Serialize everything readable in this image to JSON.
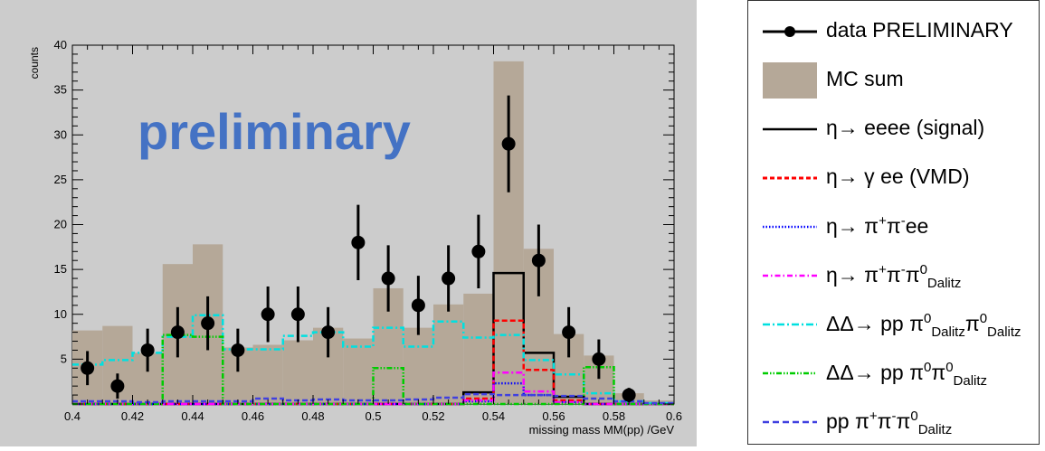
{
  "chart_data": {
    "type": "bar",
    "xlabel": "missing mass MM(pp) /GeV",
    "ylabel": "counts",
    "xlim": [
      0.4,
      0.6
    ],
    "ylim": [
      0,
      40
    ],
    "xticks": [
      "0.4",
      "0.42",
      "0.44",
      "0.46",
      "0.48",
      "0.5",
      "0.52",
      "0.54",
      "0.56",
      "0.58",
      "0.6"
    ],
    "yticks": [
      "5",
      "10",
      "15",
      "20",
      "25",
      "30",
      "35",
      "40"
    ],
    "watermark": "preliminary",
    "bins": {
      "edges": [
        0.4,
        0.41,
        0.42,
        0.43,
        0.44,
        0.45,
        0.46,
        0.47,
        0.48,
        0.49,
        0.5,
        0.51,
        0.52,
        0.53,
        0.54,
        0.55,
        0.56,
        0.57,
        0.58,
        0.59,
        0.6
      ]
    },
    "series": [
      {
        "name": "MC sum",
        "style": "filled",
        "color": "#b5a898",
        "values": [
          8.2,
          8.7,
          5.7,
          15.6,
          17.8,
          6.3,
          6.6,
          7.1,
          8.5,
          7.3,
          12.9,
          8.5,
          11.1,
          12.3,
          38.2,
          17.3,
          7.8,
          5.4,
          1.2,
          0.4
        ]
      },
      {
        "name": "η→ eeee (signal)",
        "style": "solid",
        "color": "#000000",
        "values": [
          0,
          0,
          0,
          0,
          0,
          0,
          0,
          0,
          0,
          0,
          0,
          0,
          0,
          1.3,
          14.6,
          5.7,
          0.8,
          0,
          0,
          0
        ]
      },
      {
        "name": "η→ γ ee (VMD)",
        "style": "dashed",
        "color": "#ff0000",
        "values": [
          0,
          0,
          0,
          0,
          0,
          0,
          0,
          0,
          0,
          0,
          0,
          0,
          0,
          0.6,
          9.3,
          3.8,
          0.4,
          0,
          0,
          0
        ]
      },
      {
        "name": "η→ π⁺π⁻ee",
        "style": "dotted",
        "color": "#0000ff",
        "values": [
          0,
          0,
          0,
          0,
          0,
          0,
          0,
          0,
          0,
          0,
          0,
          0,
          0,
          0.3,
          2.3,
          1.0,
          0.2,
          0,
          0,
          0
        ]
      },
      {
        "name": "η→ π⁺π⁻π⁰Dalitz",
        "style": "dashdot",
        "color": "#ff00ff",
        "values": [
          0,
          0,
          0,
          0,
          0,
          0,
          0,
          0,
          0,
          0,
          0,
          0,
          0,
          0.4,
          3.5,
          1.4,
          0.2,
          0,
          0,
          0
        ]
      },
      {
        "name": "ΔΔ→ pp π⁰Dalitzπ⁰Dalitz",
        "style": "dashdot",
        "color": "#00e0e0",
        "values": [
          4.4,
          4.9,
          5.7,
          7.5,
          9.9,
          6.1,
          6.1,
          7.6,
          8.0,
          6.4,
          8.5,
          6.4,
          9.2,
          7.4,
          7.7,
          4.9,
          3.3,
          1.2,
          0.3,
          0.1
        ]
      },
      {
        "name": "ΔΔ→ pp π⁰π⁰Dalitz",
        "style": "dashdotdot",
        "color": "#00cc00",
        "values": [
          0,
          0,
          0,
          7.7,
          7.5,
          0,
          0,
          0,
          0,
          0,
          4.0,
          0,
          0,
          0,
          0,
          0,
          0,
          4.1,
          0,
          0
        ]
      },
      {
        "name": "pp π⁺π⁻π⁰Dalitz",
        "style": "dashed",
        "color": "#4040e0",
        "values": [
          0.3,
          0.3,
          0.2,
          0.3,
          0.3,
          0.3,
          0.6,
          0.4,
          0.5,
          0.4,
          0.4,
          0.5,
          0.7,
          1.1,
          1.0,
          1.0,
          0.9,
          0.6,
          0.3,
          0.1
        ]
      },
      {
        "name": "data PRELIMINARY",
        "style": "points",
        "color": "#000000",
        "x": [
          0.405,
          0.415,
          0.425,
          0.435,
          0.445,
          0.455,
          0.465,
          0.475,
          0.485,
          0.495,
          0.505,
          0.515,
          0.525,
          0.535,
          0.545,
          0.555,
          0.565,
          0.575,
          0.585
        ],
        "values": [
          4,
          2,
          6,
          8,
          9,
          6,
          10,
          10,
          8,
          18,
          14,
          11,
          14,
          17,
          29,
          16,
          8,
          5,
          1
        ],
        "errors": [
          1.9,
          1.4,
          2.4,
          2.8,
          3.0,
          2.4,
          3.1,
          3.1,
          2.8,
          4.2,
          3.7,
          3.3,
          3.7,
          4.1,
          5.4,
          4.0,
          2.8,
          2.2,
          0.8
        ]
      }
    ]
  },
  "legend": {
    "entries": [
      {
        "key": "data",
        "label": "data PRELIMINARY"
      },
      {
        "key": "mc",
        "label": "MC sum"
      },
      {
        "key": "signal",
        "main": "η→ eeee (signal)"
      },
      {
        "key": "vmd",
        "main": "η→ γ ee (VMD)"
      },
      {
        "key": "pipiee",
        "main": "η→ π",
        "s1": "+",
        "mid": "π",
        "s2": "-",
        "tail": "ee"
      },
      {
        "key": "pipipi",
        "main": "η→ π",
        "s1": "+",
        "mid": "π",
        "s2": "-",
        "mid2": "π",
        "s3": "0",
        "sub": "Dalitz"
      },
      {
        "key": "dd_dal",
        "main": "ΔΔ→ pp π",
        "s1": "0",
        "sub1": "Dalitz",
        "mid": "π",
        "s2": "0",
        "sub2": "Dalitz"
      },
      {
        "key": "dd_pi",
        "main": "ΔΔ→ pp π",
        "s1": "0",
        "mid": "π",
        "s2": "0",
        "sub": "Dalitz"
      },
      {
        "key": "pp3pi",
        "main": "pp π",
        "s1": "+",
        "mid": "π",
        "s2": "-",
        "mid2": "π",
        "s3": "0",
        "sub": "Dalitz"
      }
    ]
  }
}
